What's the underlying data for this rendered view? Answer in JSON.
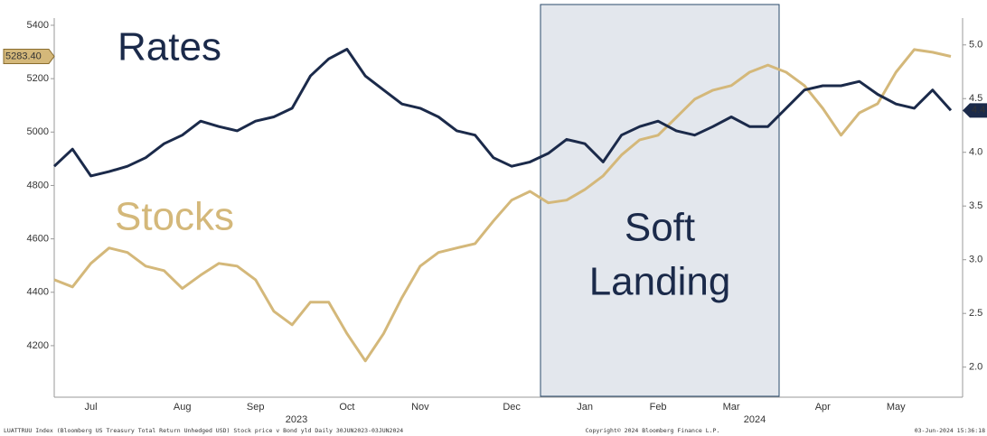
{
  "chart_data": {
    "type": "line",
    "annotations": [
      "Rates",
      "Stocks",
      "Soft",
      "Landing"
    ],
    "categories": [
      null,
      null,
      "Jul",
      null,
      null,
      null,
      null,
      "Aug",
      null,
      null,
      null,
      "Sep",
      null,
      null,
      null,
      null,
      "Oct",
      null,
      null,
      null,
      "Nov",
      null,
      null,
      null,
      null,
      "Dec",
      null,
      null,
      null,
      "Jan",
      null,
      null,
      null,
      "Feb",
      null,
      null,
      null,
      "Mar",
      null,
      null,
      null,
      null,
      "Apr",
      null,
      null,
      null,
      "May",
      null,
      null,
      null
    ],
    "years": [
      "2023",
      "2024"
    ],
    "series": [
      {
        "name": "Stocks",
        "color": "#d4b87a",
        "axis": "y",
        "values": [
          4447,
          4420,
          4508,
          4566,
          4549,
          4498,
          4481,
          4414,
          4464,
          4508,
          4498,
          4447,
          4329,
          4278,
          4363,
          4363,
          4245,
          4143,
          4245,
          4380,
          4498,
          4549,
          4566,
          4582,
          4667,
          4745,
          4778,
          4735,
          4745,
          4785,
          4836,
          4914,
          4971,
          4988,
          5055,
          5123,
          5157,
          5174,
          5224,
          5251,
          5224,
          5174,
          5089,
          4988,
          5072,
          5106,
          5224,
          5309,
          5299,
          5283.4
        ],
        "value_labels": [
          null,
          null,
          null,
          null,
          null,
          null,
          null,
          null,
          null,
          null,
          null,
          null,
          null,
          null,
          null,
          null,
          null,
          null,
          null,
          null,
          null,
          null,
          null,
          null,
          null,
          null,
          null,
          null,
          null,
          null,
          null,
          null,
          null,
          null,
          null,
          null,
          null,
          null,
          null,
          null,
          null,
          null,
          null,
          null,
          null,
          null,
          null,
          null,
          null,
          "5283.40"
        ]
      },
      {
        "name": "Rates",
        "color": "#1b2a4a",
        "axis": "y2",
        "values": [
          3.87,
          4.03,
          3.78,
          3.82,
          3.87,
          3.95,
          4.08,
          4.16,
          4.29,
          4.24,
          4.2,
          4.29,
          4.33,
          4.41,
          4.71,
          4.87,
          4.96,
          4.71,
          4.58,
          4.45,
          4.41,
          4.33,
          4.2,
          4.16,
          3.95,
          3.87,
          3.91,
          3.99,
          4.12,
          4.08,
          3.91,
          4.16,
          4.24,
          4.29,
          4.2,
          4.16,
          4.24,
          4.33,
          4.24,
          4.24,
          4.41,
          4.58,
          4.62,
          4.62,
          4.66,
          4.54,
          4.45,
          4.41,
          4.58,
          4.39
        ],
        "value_labels": [
          null,
          null,
          null,
          null,
          null,
          null,
          null,
          null,
          null,
          null,
          null,
          null,
          null,
          null,
          null,
          null,
          null,
          null,
          null,
          null,
          null,
          null,
          null,
          null,
          null,
          null,
          null,
          null,
          null,
          null,
          null,
          null,
          null,
          null,
          null,
          null,
          null,
          null,
          null,
          null,
          null,
          null,
          null,
          null,
          null,
          null,
          null,
          null,
          null,
          "4.4"
        ]
      }
    ],
    "ylim": [
      4007,
      5427
    ],
    "yticks": [
      4200,
      4400,
      4600,
      4800,
      5000,
      5200,
      5400
    ],
    "y2lim": [
      1.72,
      5.25
    ],
    "y2ticks": [
      {
        "value": 2,
        "label": "2.0"
      },
      2.5,
      {
        "value": 3,
        "label": "3.0"
      },
      3.5,
      {
        "value": 4,
        "label": "4.0"
      },
      4.5,
      {
        "value": 5,
        "label": "5.0"
      }
    ],
    "footer": [
      "LUATTRUU Index (Bloomberg US Treasury Total Return Unhedged USD) Stock price v Bond yld  Daily 30JUN2023-03JUN2024",
      "Copyright© 2024 Bloomberg Finance L.P.",
      "03-Jun-2024 15:36:18"
    ]
  }
}
